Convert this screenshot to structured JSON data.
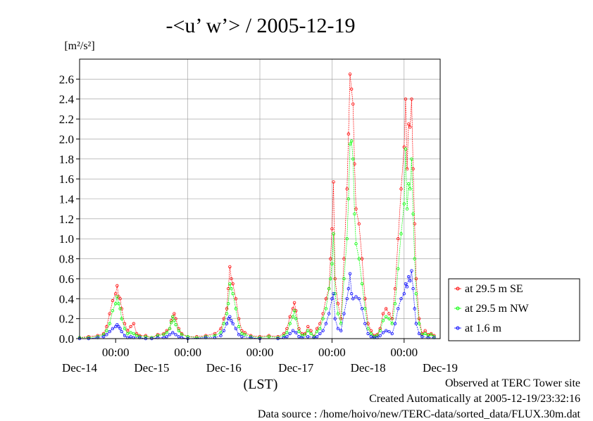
{
  "chart_data": {
    "type": "line",
    "title": "-<u’ w’> / 2005-12-19",
    "ylabel": "[m²/s²]",
    "xlabel": "(LST)",
    "ylim": [
      0,
      2.8
    ],
    "y_ticks": [
      "0.0",
      "0.2",
      "0.4",
      "0.6",
      "0.8",
      "1.0",
      "1.2",
      "1.4",
      "1.6",
      "1.8",
      "2.0",
      "2.2",
      "2.4",
      "2.6"
    ],
    "x_tick_labels": [
      "00:00",
      "00:00",
      "00:00",
      "00:00",
      "00:00"
    ],
    "day_labels": [
      "Dec-14",
      "Dec-15",
      "Dec-16",
      "Dec-17",
      "Dec-18",
      "Dec-19"
    ],
    "grid": true,
    "legend_position": "right",
    "x_unit": "hours since 2005-12-14 00:00 LST",
    "series": [
      {
        "name": "at 29.5 m SE",
        "color": "#ff0000",
        "points": [
          [
            -12,
            0.01
          ],
          [
            -9,
            0.02
          ],
          [
            -6,
            0.03
          ],
          [
            -4,
            0.05
          ],
          [
            -3,
            0.12
          ],
          [
            -2,
            0.25
          ],
          [
            -1,
            0.38
          ],
          [
            0,
            0.45
          ],
          [
            0.5,
            0.53
          ],
          [
            1,
            0.42
          ],
          [
            1.5,
            0.4
          ],
          [
            2,
            0.3
          ],
          [
            3,
            0.15
          ],
          [
            4,
            0.08
          ],
          [
            5,
            0.12
          ],
          [
            6,
            0.15
          ],
          [
            7,
            0.05
          ],
          [
            8,
            0.03
          ],
          [
            10,
            0.03
          ],
          [
            12,
            0.01
          ],
          [
            14,
            0.04
          ],
          [
            16,
            0.05
          ],
          [
            17,
            0.08
          ],
          [
            18,
            0.1
          ],
          [
            18.5,
            0.18
          ],
          [
            19,
            0.22
          ],
          [
            19.5,
            0.25
          ],
          [
            20,
            0.2
          ],
          [
            21,
            0.1
          ],
          [
            22,
            0.05
          ],
          [
            24,
            0.02
          ],
          [
            27,
            0.02
          ],
          [
            30,
            0.03
          ],
          [
            33,
            0.05
          ],
          [
            35,
            0.1
          ],
          [
            36,
            0.2
          ],
          [
            37,
            0.3
          ],
          [
            37.5,
            0.5
          ],
          [
            38,
            0.72
          ],
          [
            38.5,
            0.6
          ],
          [
            39,
            0.55
          ],
          [
            40,
            0.4
          ],
          [
            41,
            0.2
          ],
          [
            42,
            0.08
          ],
          [
            43,
            0.06
          ],
          [
            45,
            0.03
          ],
          [
            48,
            0.02
          ],
          [
            51,
            0.03
          ],
          [
            54,
            0.02
          ],
          [
            56,
            0.05
          ],
          [
            57,
            0.1
          ],
          [
            58,
            0.22
          ],
          [
            59,
            0.3
          ],
          [
            59.5,
            0.36
          ],
          [
            60,
            0.28
          ],
          [
            61,
            0.1
          ],
          [
            62,
            0.05
          ],
          [
            63,
            0.05
          ],
          [
            64,
            0.12
          ],
          [
            65,
            0.08
          ],
          [
            66,
            0.02
          ],
          [
            67,
            0.1
          ],
          [
            68,
            0.15
          ],
          [
            69,
            0.25
          ],
          [
            70,
            0.4
          ],
          [
            71,
            0.5
          ],
          [
            71.5,
            0.8
          ],
          [
            72,
            1.1
          ],
          [
            72.5,
            1.57
          ],
          [
            73,
            0.6
          ],
          [
            74,
            0.35
          ],
          [
            75,
            0.2
          ],
          [
            76,
            0.8
          ],
          [
            77,
            1.5
          ],
          [
            77.5,
            2.05
          ],
          [
            78,
            2.65
          ],
          [
            78.5,
            2.5
          ],
          [
            79,
            2.35
          ],
          [
            79.5,
            1.75
          ],
          [
            80,
            1.3
          ],
          [
            81,
            1.15
          ],
          [
            82,
            0.8
          ],
          [
            83,
            0.4
          ],
          [
            84,
            0.15
          ],
          [
            85,
            0.08
          ],
          [
            86,
            0.03
          ],
          [
            87,
            0.04
          ],
          [
            88,
            0.1
          ],
          [
            89,
            0.25
          ],
          [
            90,
            0.3
          ],
          [
            91,
            0.25
          ],
          [
            92,
            0.2
          ],
          [
            93,
            0.5
          ],
          [
            94,
            1.0
          ],
          [
            95,
            1.5
          ],
          [
            96,
            1.92
          ],
          [
            96.5,
            2.4
          ],
          [
            97,
            1.7
          ],
          [
            97.5,
            2.15
          ],
          [
            98,
            2.12
          ],
          [
            98.5,
            2.4
          ],
          [
            99,
            1.7
          ],
          [
            99.5,
            1.15
          ],
          [
            100,
            0.6
          ],
          [
            101,
            0.2
          ],
          [
            102,
            0.05
          ],
          [
            103,
            0.08
          ],
          [
            104,
            0.04
          ],
          [
            105,
            0.05
          ],
          [
            106,
            0.03
          ]
        ]
      },
      {
        "name": "at 29.5 m NW",
        "color": "#00ff00",
        "points": [
          [
            -12,
            0.01
          ],
          [
            -9,
            0.01
          ],
          [
            -6,
            0.02
          ],
          [
            -4,
            0.04
          ],
          [
            -3,
            0.08
          ],
          [
            -2,
            0.15
          ],
          [
            -1,
            0.28
          ],
          [
            0,
            0.35
          ],
          [
            0.5,
            0.42
          ],
          [
            1,
            0.35
          ],
          [
            1.5,
            0.3
          ],
          [
            2,
            0.2
          ],
          [
            3,
            0.1
          ],
          [
            4,
            0.05
          ],
          [
            5,
            0.06
          ],
          [
            6,
            0.05
          ],
          [
            7,
            0.03
          ],
          [
            8,
            0.02
          ],
          [
            10,
            0.02
          ],
          [
            12,
            0.01
          ],
          [
            14,
            0.03
          ],
          [
            16,
            0.04
          ],
          [
            17,
            0.06
          ],
          [
            18,
            0.1
          ],
          [
            18.5,
            0.16
          ],
          [
            19,
            0.22
          ],
          [
            19.5,
            0.18
          ],
          [
            20,
            0.14
          ],
          [
            21,
            0.08
          ],
          [
            22,
            0.04
          ],
          [
            24,
            0.02
          ],
          [
            27,
            0.01
          ],
          [
            30,
            0.02
          ],
          [
            33,
            0.03
          ],
          [
            35,
            0.06
          ],
          [
            36,
            0.15
          ],
          [
            37,
            0.25
          ],
          [
            37.5,
            0.35
          ],
          [
            38,
            0.55
          ],
          [
            38.5,
            0.5
          ],
          [
            39,
            0.45
          ],
          [
            40,
            0.3
          ],
          [
            41,
            0.12
          ],
          [
            42,
            0.05
          ],
          [
            43,
            0.04
          ],
          [
            45,
            0.02
          ],
          [
            48,
            0.01
          ],
          [
            51,
            0.02
          ],
          [
            54,
            0.01
          ],
          [
            56,
            0.03
          ],
          [
            57,
            0.06
          ],
          [
            58,
            0.15
          ],
          [
            59,
            0.22
          ],
          [
            59.5,
            0.28
          ],
          [
            60,
            0.2
          ],
          [
            61,
            0.07
          ],
          [
            62,
            0.03
          ],
          [
            63,
            0.04
          ],
          [
            64,
            0.08
          ],
          [
            65,
            0.05
          ],
          [
            66,
            0.02
          ],
          [
            67,
            0.07
          ],
          [
            68,
            0.1
          ],
          [
            69,
            0.2
          ],
          [
            70,
            0.3
          ],
          [
            71,
            0.5
          ],
          [
            71.5,
            0.6
          ],
          [
            72,
            0.75
          ],
          [
            72.5,
            1.05
          ],
          [
            73,
            0.45
          ],
          [
            74,
            0.25
          ],
          [
            75,
            0.15
          ],
          [
            76,
            0.6
          ],
          [
            77,
            1.0
          ],
          [
            77.5,
            1.4
          ],
          [
            78,
            1.95
          ],
          [
            78.5,
            1.98
          ],
          [
            79,
            1.8
          ],
          [
            79.5,
            1.25
          ],
          [
            80,
            0.95
          ],
          [
            81,
            0.8
          ],
          [
            82,
            0.55
          ],
          [
            83,
            0.3
          ],
          [
            84,
            0.1
          ],
          [
            85,
            0.05
          ],
          [
            86,
            0.02
          ],
          [
            87,
            0.03
          ],
          [
            88,
            0.08
          ],
          [
            89,
            0.18
          ],
          [
            90,
            0.22
          ],
          [
            91,
            0.2
          ],
          [
            92,
            0.15
          ],
          [
            93,
            0.35
          ],
          [
            94,
            0.7
          ],
          [
            95,
            1.05
          ],
          [
            96,
            1.35
          ],
          [
            96.5,
            1.9
          ],
          [
            97,
            1.3
          ],
          [
            97.5,
            1.55
          ],
          [
            98,
            1.5
          ],
          [
            98.5,
            1.8
          ],
          [
            99,
            1.25
          ],
          [
            99.5,
            0.8
          ],
          [
            100,
            0.45
          ],
          [
            101,
            0.15
          ],
          [
            102,
            0.04
          ],
          [
            103,
            0.05
          ],
          [
            104,
            0.03
          ],
          [
            105,
            0.04
          ],
          [
            106,
            0.02
          ]
        ]
      },
      {
        "name": "at 1.6 m",
        "color": "#0000ff",
        "points": [
          [
            -12,
            0.0
          ],
          [
            -9,
            0.0
          ],
          [
            -6,
            0.01
          ],
          [
            -4,
            0.02
          ],
          [
            -3,
            0.04
          ],
          [
            -2,
            0.07
          ],
          [
            -1,
            0.1
          ],
          [
            0,
            0.12
          ],
          [
            0.5,
            0.14
          ],
          [
            1,
            0.12
          ],
          [
            1.5,
            0.1
          ],
          [
            2,
            0.07
          ],
          [
            3,
            0.03
          ],
          [
            4,
            0.01
          ],
          [
            5,
            0.02
          ],
          [
            6,
            0.01
          ],
          [
            8,
            0.01
          ],
          [
            10,
            0.0
          ],
          [
            12,
            0.0
          ],
          [
            14,
            0.01
          ],
          [
            16,
            0.01
          ],
          [
            17,
            0.02
          ],
          [
            18,
            0.04
          ],
          [
            19,
            0.06
          ],
          [
            20,
            0.04
          ],
          [
            21,
            0.02
          ],
          [
            22,
            0.01
          ],
          [
            24,
            0.0
          ],
          [
            30,
            0.01
          ],
          [
            33,
            0.01
          ],
          [
            35,
            0.03
          ],
          [
            36,
            0.08
          ],
          [
            37,
            0.15
          ],
          [
            37.5,
            0.2
          ],
          [
            38,
            0.22
          ],
          [
            38.5,
            0.18
          ],
          [
            39,
            0.15
          ],
          [
            40,
            0.1
          ],
          [
            41,
            0.04
          ],
          [
            42,
            0.02
          ],
          [
            45,
            0.01
          ],
          [
            48,
            0.0
          ],
          [
            54,
            0.0
          ],
          [
            56,
            0.01
          ],
          [
            57,
            0.02
          ],
          [
            58,
            0.05
          ],
          [
            59,
            0.08
          ],
          [
            60,
            0.06
          ],
          [
            61,
            0.02
          ],
          [
            62,
            0.01
          ],
          [
            64,
            0.02
          ],
          [
            66,
            0.01
          ],
          [
            67,
            0.02
          ],
          [
            68,
            0.05
          ],
          [
            69,
            0.08
          ],
          [
            70,
            0.15
          ],
          [
            71,
            0.25
          ],
          [
            72,
            0.4
          ],
          [
            72.5,
            0.45
          ],
          [
            73,
            0.2
          ],
          [
            74,
            0.1
          ],
          [
            75,
            0.08
          ],
          [
            76,
            0.25
          ],
          [
            77,
            0.4
          ],
          [
            77.5,
            0.5
          ],
          [
            78,
            0.65
          ],
          [
            78.5,
            0.45
          ],
          [
            79,
            0.4
          ],
          [
            80,
            0.42
          ],
          [
            81,
            0.4
          ],
          [
            82,
            0.3
          ],
          [
            83,
            0.15
          ],
          [
            84,
            0.05
          ],
          [
            85,
            0.02
          ],
          [
            86,
            0.01
          ],
          [
            87,
            0.01
          ],
          [
            88,
            0.03
          ],
          [
            89,
            0.06
          ],
          [
            90,
            0.08
          ],
          [
            91,
            0.07
          ],
          [
            92,
            0.05
          ],
          [
            93,
            0.15
          ],
          [
            94,
            0.3
          ],
          [
            95,
            0.4
          ],
          [
            96,
            0.45
          ],
          [
            96.5,
            0.55
          ],
          [
            97,
            0.52
          ],
          [
            97.5,
            0.62
          ],
          [
            98,
            0.58
          ],
          [
            98.5,
            0.68
          ],
          [
            99,
            0.5
          ],
          [
            99.5,
            0.3
          ],
          [
            100,
            0.15
          ],
          [
            101,
            0.05
          ],
          [
            102,
            0.02
          ],
          [
            104,
            0.01
          ],
          [
            106,
            0.01
          ]
        ]
      }
    ]
  },
  "footer": {
    "line1": "Observed at TERC Tower site",
    "line2": "Created Automatically at 2005-12-19/23:32:16",
    "line3": "Data source : /home/hoivo/new/TERC-data/sorted_data/FLUX.30m.dat"
  }
}
